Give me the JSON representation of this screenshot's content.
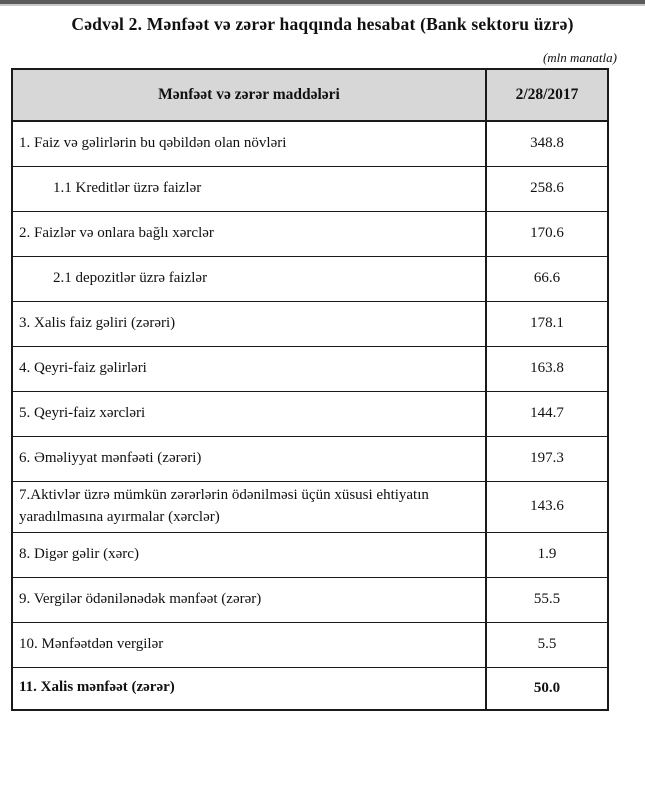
{
  "page": {
    "title": "Cədvəl 2. Mənfəət və zərər haqqında hesabat (Bank sektoru üzrə)",
    "unit_note": "(mln manatla)"
  },
  "table": {
    "columns": {
      "items_header": "Mənfəət və zərər maddələri",
      "date_header": "2/28/2017"
    },
    "rows": [
      {
        "label": "1. Faiz və gəlirlərin bu qəbildən olan növləri",
        "value": "348.8"
      },
      {
        "label": "1.1 Kreditlər üzrə faizlər",
        "value": "258.6"
      },
      {
        "label": "2. Faizlər və onlara bağlı xərclər",
        "value": "170.6"
      },
      {
        "label": "2.1 depozitlər üzrə faizlər",
        "value": "66.6"
      },
      {
        "label": "3. Xalis faiz gəliri (zərəri)",
        "value": "178.1"
      },
      {
        "label": "4. Qeyri-faiz gəlirləri",
        "value": "163.8"
      },
      {
        "label": "5. Qeyri-faiz xərcləri",
        "value": "144.7"
      },
      {
        "label": "6. Əməliyyat mənfəəti (zərəri)",
        "value": "197.3"
      },
      {
        "label": "7.Aktivlər üzrə mümkün zərərlərin ödənilməsi üçün xüsusi ehtiyatın yaradılmasına ayırmalar (xərclər)",
        "value": "143.6"
      },
      {
        "label": "8. Digər gəlir (xərc)",
        "value": "1.9"
      },
      {
        "label": "9. Vergilər ödənilənədək mənfəət (zərər)",
        "value": "55.5"
      },
      {
        "label": "10. Mənfəətdən vergilər",
        "value": "5.5"
      },
      {
        "label": "11. Xalis mənfəət (zərər)",
        "value": "50.0"
      }
    ]
  },
  "colors": {
    "header_background": "#d7d7d7",
    "border": "#1a1a1a",
    "top_rule": "#5b5b5b",
    "text": "#111111"
  },
  "chart_data": {
    "type": "table",
    "title": "Cədvəl 2. Mənfəət və zərər haqqında hesabat (Bank sektoru üzrə)",
    "unit": "mln manatla",
    "columns": [
      "Mənfəət və zərər maddələri",
      "2/28/2017"
    ],
    "categories": [
      "1. Faiz və gəlirlərin bu qəbildən olan növləri",
      "1.1 Kreditlər üzrə faizlər",
      "2. Faizlər və onlara bağlı xərclər",
      "2.1 depozitlər üzrə faizlər",
      "3. Xalis faiz gəliri (zərəri)",
      "4. Qeyri-faiz gəlirləri",
      "5. Qeyri-faiz xərcləri",
      "6. Əməliyyat mənfəəti (zərəri)",
      "7.Aktivlər üzrə mümkün zərərlərin ödənilməsi üçün xüsusi ehtiyatın yaradılmasına ayırmalar (xərclər)",
      "8. Digər gəlir (xərc)",
      "9. Vergilər ödənilənədək mənfəət (zərər)",
      "10. Mənfəətdən vergilər",
      "11. Xalis mənfəət (zərər)"
    ],
    "values": [
      348.8,
      258.6,
      170.6,
      66.6,
      178.1,
      163.8,
      144.7,
      197.3,
      143.6,
      1.9,
      55.5,
      5.5,
      50.0
    ]
  }
}
